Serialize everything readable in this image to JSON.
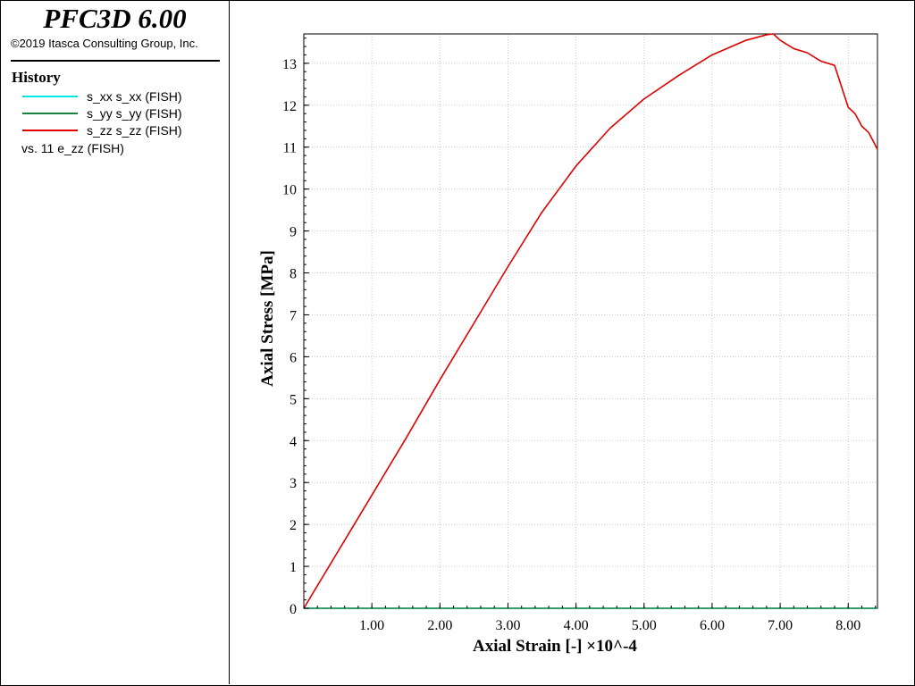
{
  "app": {
    "title": "PFC3D 6.00",
    "copyright": "©2019 Itasca Consulting Group, Inc."
  },
  "legend": {
    "title": "History",
    "items": [
      {
        "label": "s_xx s_xx (FISH)",
        "color": "#00e5e5"
      },
      {
        "label": "s_yy s_yy (FISH)",
        "color": "#1a8040"
      },
      {
        "label": "s_zz s_zz (FISH)",
        "color": "#e00000"
      }
    ],
    "vs_label": "vs. 11 e_zz (FISH)"
  },
  "chart_data": {
    "type": "line",
    "xlabel": "Axial Strain [-] ×10^-4",
    "ylabel": "Axial Stress  [MPa]",
    "xlim": [
      0,
      8.43
    ],
    "ylim": [
      0,
      13.7
    ],
    "xticks": [
      1,
      2,
      3,
      4,
      5,
      6,
      7,
      8
    ],
    "xtick_labels": [
      "1.00",
      "2.00",
      "3.00",
      "4.00",
      "5.00",
      "6.00",
      "7.00",
      "8.00"
    ],
    "yticks": [
      0,
      1,
      2,
      3,
      4,
      5,
      6,
      7,
      8,
      9,
      10,
      11,
      12,
      13
    ],
    "ytick_labels": [
      "0",
      "1",
      "2",
      "3",
      "4",
      "5",
      "6",
      "7",
      "8",
      "9",
      "10",
      "11",
      "12",
      "13"
    ],
    "grid": true,
    "series": [
      {
        "name": "s_xx s_xx (FISH)",
        "color": "#00e5e5",
        "x": [
          0,
          8.43
        ],
        "y": [
          0,
          0
        ]
      },
      {
        "name": "s_yy s_yy (FISH)",
        "color": "#1a8040",
        "x": [
          0,
          8.43
        ],
        "y": [
          0,
          0
        ]
      },
      {
        "name": "s_zz s_zz (FISH)",
        "color": "#e00000",
        "x": [
          0,
          0.5,
          1.0,
          1.5,
          2.0,
          2.5,
          3.0,
          3.5,
          4.0,
          4.5,
          5.0,
          5.5,
          6.0,
          6.5,
          6.8,
          6.9,
          7.0,
          7.2,
          7.4,
          7.6,
          7.8,
          7.9,
          8.0,
          8.1,
          8.2,
          8.3,
          8.43
        ],
        "y": [
          0,
          1.35,
          2.7,
          4.05,
          5.45,
          6.8,
          8.15,
          9.45,
          10.55,
          11.45,
          12.15,
          12.7,
          13.2,
          13.55,
          13.68,
          13.7,
          13.55,
          13.35,
          13.25,
          13.05,
          12.95,
          12.45,
          11.95,
          11.8,
          11.5,
          11.35,
          10.95
        ]
      }
    ]
  }
}
